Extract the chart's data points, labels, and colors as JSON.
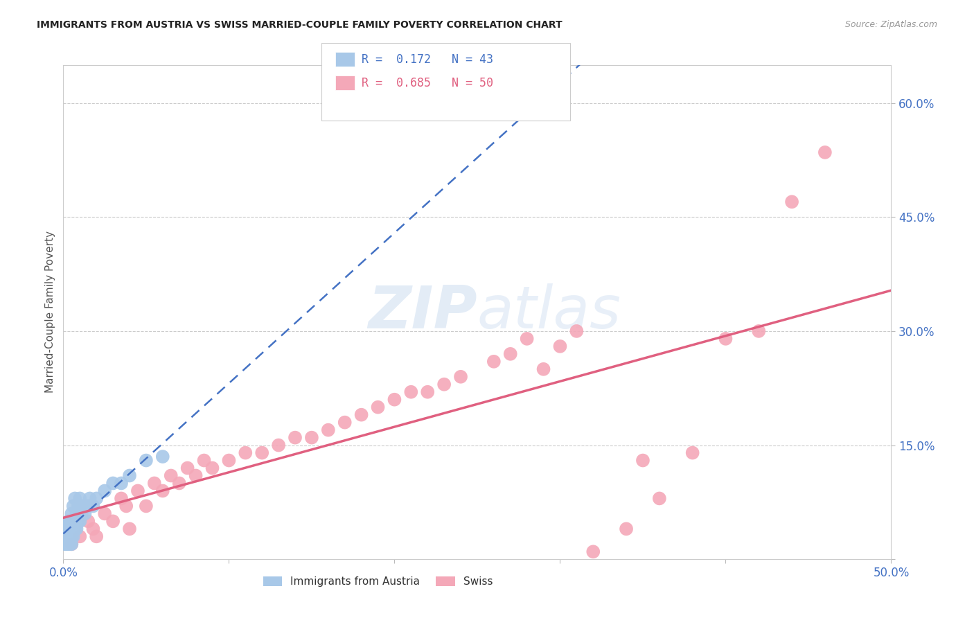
{
  "title": "IMMIGRANTS FROM AUSTRIA VS SWISS MARRIED-COUPLE FAMILY POVERTY CORRELATION CHART",
  "source": "Source: ZipAtlas.com",
  "ylabel": "Married-Couple Family Poverty",
  "xlim": [
    0.0,
    0.5
  ],
  "ylim": [
    0.0,
    0.65
  ],
  "xticks": [
    0.0,
    0.1,
    0.2,
    0.3,
    0.4,
    0.5
  ],
  "xticklabels": [
    "0.0%",
    "",
    "",
    "",
    "",
    "50.0%"
  ],
  "yticks": [
    0.0,
    0.15,
    0.3,
    0.45,
    0.6
  ],
  "yticklabels": [
    "",
    "15.0%",
    "30.0%",
    "45.0%",
    "60.0%"
  ],
  "austria_R": 0.172,
  "austria_N": 43,
  "swiss_R": 0.685,
  "swiss_N": 50,
  "austria_color": "#a8c8e8",
  "swiss_color": "#f4a8b8",
  "austria_line_color": "#4472c4",
  "swiss_line_color": "#e06080",
  "grid_color": "#cccccc",
  "background_color": "#ffffff",
  "austria_x": [
    0.001,
    0.001,
    0.002,
    0.002,
    0.002,
    0.003,
    0.003,
    0.003,
    0.003,
    0.004,
    0.004,
    0.004,
    0.004,
    0.005,
    0.005,
    0.005,
    0.005,
    0.006,
    0.006,
    0.006,
    0.006,
    0.007,
    0.007,
    0.007,
    0.008,
    0.008,
    0.009,
    0.009,
    0.01,
    0.01,
    0.011,
    0.012,
    0.013,
    0.015,
    0.016,
    0.018,
    0.02,
    0.025,
    0.03,
    0.035,
    0.04,
    0.05,
    0.06
  ],
  "austria_y": [
    0.02,
    0.03,
    0.02,
    0.03,
    0.04,
    0.02,
    0.03,
    0.04,
    0.05,
    0.02,
    0.03,
    0.04,
    0.05,
    0.02,
    0.03,
    0.04,
    0.06,
    0.03,
    0.04,
    0.05,
    0.07,
    0.04,
    0.05,
    0.08,
    0.04,
    0.06,
    0.05,
    0.07,
    0.05,
    0.08,
    0.06,
    0.07,
    0.06,
    0.07,
    0.08,
    0.07,
    0.08,
    0.09,
    0.1,
    0.1,
    0.11,
    0.13,
    0.135
  ],
  "swiss_x": [
    0.005,
    0.01,
    0.015,
    0.018,
    0.02,
    0.025,
    0.03,
    0.035,
    0.038,
    0.04,
    0.045,
    0.05,
    0.055,
    0.06,
    0.065,
    0.07,
    0.075,
    0.08,
    0.085,
    0.09,
    0.1,
    0.11,
    0.12,
    0.13,
    0.14,
    0.15,
    0.16,
    0.17,
    0.18,
    0.19,
    0.2,
    0.21,
    0.22,
    0.23,
    0.24,
    0.26,
    0.27,
    0.28,
    0.29,
    0.3,
    0.31,
    0.32,
    0.34,
    0.35,
    0.36,
    0.38,
    0.4,
    0.42,
    0.44,
    0.46
  ],
  "swiss_y": [
    0.02,
    0.03,
    0.05,
    0.04,
    0.03,
    0.06,
    0.05,
    0.08,
    0.07,
    0.04,
    0.09,
    0.07,
    0.1,
    0.09,
    0.11,
    0.1,
    0.12,
    0.11,
    0.13,
    0.12,
    0.13,
    0.14,
    0.14,
    0.15,
    0.16,
    0.16,
    0.17,
    0.18,
    0.19,
    0.2,
    0.21,
    0.22,
    0.22,
    0.23,
    0.24,
    0.26,
    0.27,
    0.29,
    0.25,
    0.28,
    0.3,
    0.01,
    0.04,
    0.13,
    0.08,
    0.14,
    0.29,
    0.3,
    0.47,
    0.535
  ]
}
